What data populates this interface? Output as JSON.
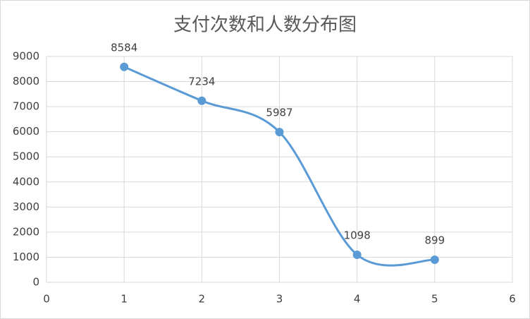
{
  "chart_data": {
    "type": "scatter-smooth",
    "title": "支付次数和人数分布图",
    "x": [
      1,
      2,
      3,
      4,
      5
    ],
    "series": [
      {
        "color": "#5b9bd5",
        "values": [
          8584,
          7234,
          5987,
          1098,
          899
        ]
      }
    ],
    "xlim": [
      0,
      6
    ],
    "xticks": [
      0,
      1,
      2,
      3,
      4,
      5,
      6
    ],
    "ylim": [
      0,
      9000
    ],
    "yticks": [
      0,
      1000,
      2000,
      3000,
      4000,
      5000,
      6000,
      7000,
      8000,
      9000
    ],
    "grid": true,
    "data_labels": true
  }
}
